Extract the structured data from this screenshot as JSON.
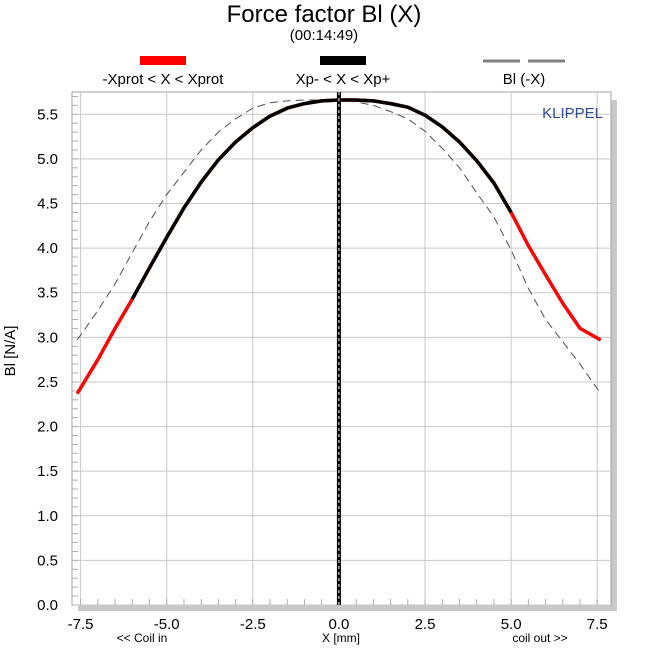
{
  "title": "Force factor Bl (X)",
  "subtitle": "(00:14:49)",
  "watermark": "KLIPPEL",
  "legend": [
    {
      "label": "-Xprot < X < Xprot",
      "color": "#ff0000",
      "style": "solid-thick"
    },
    {
      "label": "Xp- < X < Xp+",
      "color": "#000000",
      "style": "solid-thick"
    },
    {
      "label": "Bl (-X)",
      "color": "#808080",
      "style": "dashed"
    }
  ],
  "chart_data": {
    "type": "line",
    "title": "Force factor Bl (X)",
    "xlabel": "X [mm]",
    "ylabel": "Bl [N/A]",
    "x_annotation_left": "<< Coil in",
    "x_annotation_right": "coil out >>",
    "xlim": [
      -7.75,
      7.9
    ],
    "ylim": [
      0.0,
      5.75
    ],
    "xticks": [
      "-7.5",
      "-5.0",
      "-2.5",
      "0.0",
      "2.5",
      "5.0",
      "7.5"
    ],
    "yticks": [
      "0.0",
      "0.5",
      "1.0",
      "1.5",
      "2.0",
      "2.5",
      "3.0",
      "3.5",
      "4.0",
      "4.5",
      "5.0",
      "5.5"
    ],
    "grid": true,
    "vertical_marker_x": 0.0,
    "series": [
      {
        "name": "-Xprot < X < Xprot",
        "color": "#ff0000",
        "x": [
          -7.6,
          -7.0,
          -6.5,
          -6.0,
          -5.5,
          -5.0,
          -4.5,
          -4.0,
          -3.5,
          -3.0,
          -2.5,
          -2.0,
          -1.5,
          -1.0,
          -0.5,
          0.0,
          0.5,
          1.0,
          1.5,
          2.0,
          2.5,
          3.0,
          3.5,
          4.0,
          4.5,
          5.0,
          5.5,
          6.0,
          6.5,
          7.0,
          7.6
        ],
        "y": [
          2.37,
          2.75,
          3.1,
          3.43,
          3.78,
          4.12,
          4.45,
          4.74,
          4.99,
          5.19,
          5.35,
          5.48,
          5.57,
          5.62,
          5.65,
          5.66,
          5.66,
          5.65,
          5.62,
          5.58,
          5.49,
          5.36,
          5.19,
          4.98,
          4.73,
          4.4,
          4.03,
          3.7,
          3.38,
          3.1,
          2.97
        ]
      },
      {
        "name": "Xp- < X < Xp+",
        "color": "#000000",
        "x": [
          -6.0,
          -5.5,
          -5.0,
          -4.5,
          -4.0,
          -3.5,
          -3.0,
          -2.5,
          -2.0,
          -1.5,
          -1.0,
          -0.5,
          0.0,
          0.5,
          1.0,
          1.5,
          2.0,
          2.5,
          3.0,
          3.5,
          4.0,
          4.5,
          5.0,
          5.2
        ],
        "y": [
          3.43,
          3.78,
          4.12,
          4.45,
          4.74,
          4.99,
          5.19,
          5.35,
          5.48,
          5.57,
          5.62,
          5.65,
          5.66,
          5.66,
          5.65,
          5.62,
          5.58,
          5.49,
          5.36,
          5.19,
          4.98,
          4.73,
          4.4,
          4.57
        ]
      },
      {
        "name": "Bl (-X)",
        "color": "#808080",
        "dashed": true,
        "x": [
          -7.6,
          -7.0,
          -6.5,
          -6.0,
          -5.5,
          -5.0,
          -4.5,
          -4.0,
          -3.5,
          -3.0,
          -2.5,
          -2.0,
          -1.5,
          -1.0,
          -0.5,
          0.0,
          0.5,
          1.0,
          1.5,
          2.0,
          2.5,
          3.0,
          3.5,
          4.0,
          4.5,
          5.0,
          5.5,
          6.0,
          6.5,
          7.0,
          7.6
        ],
        "y": [
          2.97,
          3.3,
          3.6,
          3.95,
          4.3,
          4.6,
          4.85,
          5.1,
          5.3,
          5.45,
          5.57,
          5.63,
          5.65,
          5.66,
          5.66,
          5.66,
          5.64,
          5.6,
          5.53,
          5.45,
          5.31,
          5.12,
          4.9,
          4.62,
          4.35,
          3.98,
          3.55,
          3.2,
          2.95,
          2.7,
          2.37
        ]
      }
    ]
  }
}
